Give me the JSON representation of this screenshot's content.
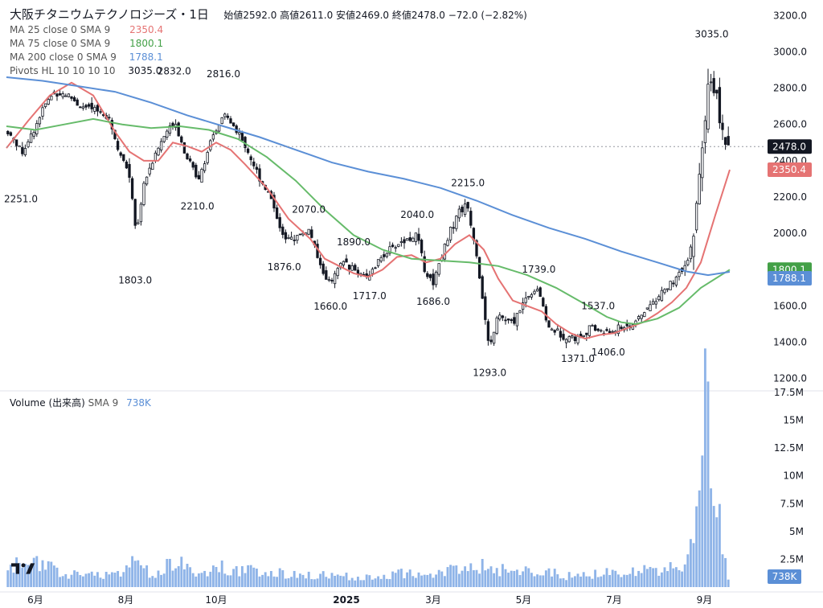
{
  "header": {
    "symbol": "大阪チタニウムテクノロジーズ・1日",
    "open_label": "始値",
    "open": "2592.0",
    "high_label": "高値",
    "high": "2611.0",
    "low_label": "安値",
    "low": "2469.0",
    "close_label": "終値",
    "close": "2478.0",
    "change": "−72.0 (−2.82%)"
  },
  "indicators": [
    {
      "label": "MA 25 close 0 SMA 9",
      "value": "2350.4",
      "color": "#e57373"
    },
    {
      "label": "MA 75 close 0 SMA 9",
      "value": "1800.1",
      "color": "#66bb6a"
    },
    {
      "label": "MA 200 close 0 SMA 9",
      "value": "1788.1",
      "color": "#5b8fd6"
    },
    {
      "label": "Pivots HL 10 10 10 10",
      "value": "3035.0",
      "color": "#131722"
    }
  ],
  "volume_legend": {
    "label": "Volume (出来高)",
    "sma": "SMA 9",
    "value": "738K",
    "color": "#5b8fd6"
  },
  "chart_data": [
    {
      "type": "candlestick",
      "title": "大阪チタニウムテクノロジーズ・1日",
      "ylim": [
        1150,
        3250
      ],
      "y_ticks": [
        "3200.0",
        "3000.0",
        "2800.0",
        "2600.0",
        "2400.0",
        "2200.0",
        "2000.0",
        "1800.0",
        "1600.0",
        "1400.0",
        "1200.0"
      ],
      "x_ticks": [
        "6月",
        "8月",
        "10月",
        "2025",
        "3月",
        "5月",
        "7月",
        "9月"
      ],
      "last_price": {
        "value": 2478.0,
        "label": "2478.0",
        "color": "#131722"
      },
      "ma_price_labels": [
        {
          "value": 2350.4,
          "label": "2350.4",
          "color": "#e57373"
        },
        {
          "value": 1800.1,
          "label": "1800.1",
          "color": "#43a047"
        },
        {
          "value": 1788.1,
          "label": "1788.1",
          "color": "#5b8fd6"
        }
      ],
      "pivots": [
        {
          "label": "2251.0",
          "value": 2251,
          "kind": "low",
          "t": 0.02
        },
        {
          "label": "2832.0",
          "value": 2832,
          "kind": "high",
          "t": 0.232
        },
        {
          "label": "1803.0",
          "value": 1803,
          "kind": "low",
          "t": 0.178
        },
        {
          "label": "2816.0",
          "value": 2816,
          "kind": "high",
          "t": 0.3
        },
        {
          "label": "2210.0",
          "value": 2210,
          "kind": "low",
          "t": 0.264
        },
        {
          "label": "2070.0",
          "value": 2070,
          "kind": "high",
          "t": 0.418
        },
        {
          "label": "1876.0",
          "value": 1876,
          "kind": "low",
          "t": 0.384
        },
        {
          "label": "1890.0",
          "value": 1890,
          "kind": "high",
          "t": 0.48
        },
        {
          "label": "1660.0",
          "value": 1660,
          "kind": "low",
          "t": 0.448
        },
        {
          "label": "1717.0",
          "value": 1717,
          "kind": "low",
          "t": 0.502
        },
        {
          "label": "2040.0",
          "value": 2040,
          "kind": "high",
          "t": 0.568
        },
        {
          "label": "2215.0",
          "value": 2215,
          "kind": "high",
          "t": 0.638
        },
        {
          "label": "1686.0",
          "value": 1686,
          "kind": "low",
          "t": 0.59
        },
        {
          "label": "1739.0",
          "value": 1739,
          "kind": "high",
          "t": 0.736
        },
        {
          "label": "1293.0",
          "value": 1293,
          "kind": "low",
          "t": 0.668
        },
        {
          "label": "1537.0",
          "value": 1537,
          "kind": "high",
          "t": 0.818
        },
        {
          "label": "1371.0",
          "value": 1371,
          "kind": "low",
          "t": 0.79
        },
        {
          "label": "1406.0",
          "value": 1406,
          "kind": "low",
          "t": 0.832
        },
        {
          "label": "3035.0",
          "value": 3035,
          "kind": "high",
          "t": 0.975
        }
      ],
      "close_path": [
        [
          0.0,
          2560
        ],
        [
          0.02,
          2450
        ],
        [
          0.035,
          2560
        ],
        [
          0.05,
          2700
        ],
        [
          0.065,
          2780
        ],
        [
          0.085,
          2760
        ],
        [
          0.1,
          2700
        ],
        [
          0.12,
          2680
        ],
        [
          0.14,
          2650
        ],
        [
          0.15,
          2500
        ],
        [
          0.17,
          2300
        ],
        [
          0.178,
          2000
        ],
        [
          0.19,
          2300
        ],
        [
          0.21,
          2480
        ],
        [
          0.22,
          2560
        ],
        [
          0.232,
          2620
        ],
        [
          0.245,
          2450
        ],
        [
          0.264,
          2300
        ],
        [
          0.28,
          2480
        ],
        [
          0.3,
          2660
        ],
        [
          0.315,
          2580
        ],
        [
          0.33,
          2480
        ],
        [
          0.35,
          2300
        ],
        [
          0.365,
          2200
        ],
        [
          0.384,
          1960
        ],
        [
          0.4,
          1980
        ],
        [
          0.418,
          2020
        ],
        [
          0.435,
          1800
        ],
        [
          0.448,
          1720
        ],
        [
          0.465,
          1850
        ],
        [
          0.48,
          1800
        ],
        [
          0.502,
          1760
        ],
        [
          0.52,
          1880
        ],
        [
          0.545,
          1950
        ],
        [
          0.568,
          1990
        ],
        [
          0.58,
          1780
        ],
        [
          0.59,
          1730
        ],
        [
          0.605,
          1920
        ],
        [
          0.625,
          2120
        ],
        [
          0.638,
          2150
        ],
        [
          0.65,
          1900
        ],
        [
          0.66,
          1600
        ],
        [
          0.668,
          1350
        ],
        [
          0.68,
          1550
        ],
        [
          0.7,
          1500
        ],
        [
          0.72,
          1650
        ],
        [
          0.736,
          1700
        ],
        [
          0.75,
          1480
        ],
        [
          0.77,
          1440
        ],
        [
          0.79,
          1420
        ],
        [
          0.81,
          1480
        ],
        [
          0.832,
          1450
        ],
        [
          0.85,
          1480
        ],
        [
          0.87,
          1500
        ],
        [
          0.89,
          1600
        ],
        [
          0.91,
          1680
        ],
        [
          0.93,
          1760
        ],
        [
          0.945,
          1850
        ],
        [
          0.955,
          2100
        ],
        [
          0.965,
          2500
        ],
        [
          0.975,
          2900
        ],
        [
          0.985,
          2700
        ],
        [
          0.995,
          2450
        ],
        [
          1.0,
          2478
        ]
      ],
      "series": [
        {
          "name": "MA 25 close 0 SMA 9",
          "color": "#e57373",
          "points": [
            [
              0.0,
              2470
            ],
            [
              0.03,
              2620
            ],
            [
              0.06,
              2760
            ],
            [
              0.09,
              2830
            ],
            [
              0.12,
              2760
            ],
            [
              0.15,
              2560
            ],
            [
              0.17,
              2450
            ],
            [
              0.19,
              2400
            ],
            [
              0.21,
              2400
            ],
            [
              0.23,
              2500
            ],
            [
              0.25,
              2480
            ],
            [
              0.27,
              2450
            ],
            [
              0.29,
              2500
            ],
            [
              0.31,
              2460
            ],
            [
              0.33,
              2380
            ],
            [
              0.36,
              2250
            ],
            [
              0.39,
              2080
            ],
            [
              0.42,
              1970
            ],
            [
              0.44,
              1860
            ],
            [
              0.46,
              1820
            ],
            [
              0.48,
              1780
            ],
            [
              0.5,
              1760
            ],
            [
              0.52,
              1800
            ],
            [
              0.54,
              1870
            ],
            [
              0.56,
              1880
            ],
            [
              0.58,
              1840
            ],
            [
              0.6,
              1860
            ],
            [
              0.62,
              1940
            ],
            [
              0.64,
              1990
            ],
            [
              0.66,
              1910
            ],
            [
              0.68,
              1750
            ],
            [
              0.7,
              1630
            ],
            [
              0.72,
              1600
            ],
            [
              0.74,
              1570
            ],
            [
              0.76,
              1500
            ],
            [
              0.78,
              1450
            ],
            [
              0.8,
              1420
            ],
            [
              0.82,
              1440
            ],
            [
              0.84,
              1450
            ],
            [
              0.86,
              1480
            ],
            [
              0.88,
              1510
            ],
            [
              0.9,
              1560
            ],
            [
              0.92,
              1620
            ],
            [
              0.94,
              1700
            ],
            [
              0.96,
              1840
            ],
            [
              0.98,
              2100
            ],
            [
              1.0,
              2350.4
            ]
          ]
        },
        {
          "name": "MA 75 close 0 SMA 9",
          "color": "#66bb6a",
          "points": [
            [
              0.0,
              2590
            ],
            [
              0.04,
              2570
            ],
            [
              0.08,
              2600
            ],
            [
              0.12,
              2630
            ],
            [
              0.16,
              2600
            ],
            [
              0.2,
              2580
            ],
            [
              0.24,
              2590
            ],
            [
              0.28,
              2570
            ],
            [
              0.32,
              2520
            ],
            [
              0.36,
              2420
            ],
            [
              0.4,
              2290
            ],
            [
              0.44,
              2130
            ],
            [
              0.48,
              1990
            ],
            [
              0.52,
              1910
            ],
            [
              0.56,
              1860
            ],
            [
              0.6,
              1850
            ],
            [
              0.64,
              1840
            ],
            [
              0.68,
              1820
            ],
            [
              0.72,
              1770
            ],
            [
              0.76,
              1700
            ],
            [
              0.8,
              1610
            ],
            [
              0.83,
              1540
            ],
            [
              0.85,
              1510
            ],
            [
              0.87,
              1500
            ],
            [
              0.9,
              1530
            ],
            [
              0.93,
              1590
            ],
            [
              0.96,
              1700
            ],
            [
              1.0,
              1800.1
            ]
          ]
        },
        {
          "name": "MA 200 close 0 SMA 9",
          "color": "#5b8fd6",
          "points": [
            [
              0.0,
              2860
            ],
            [
              0.05,
              2840
            ],
            [
              0.1,
              2810
            ],
            [
              0.15,
              2780
            ],
            [
              0.2,
              2720
            ],
            [
              0.25,
              2650
            ],
            [
              0.3,
              2590
            ],
            [
              0.35,
              2530
            ],
            [
              0.4,
              2460
            ],
            [
              0.45,
              2390
            ],
            [
              0.5,
              2340
            ],
            [
              0.55,
              2300
            ],
            [
              0.6,
              2250
            ],
            [
              0.65,
              2180
            ],
            [
              0.7,
              2100
            ],
            [
              0.75,
              2030
            ],
            [
              0.8,
              1970
            ],
            [
              0.85,
              1900
            ],
            [
              0.9,
              1840
            ],
            [
              0.94,
              1790
            ],
            [
              0.97,
              1770
            ],
            [
              1.0,
              1788.1
            ]
          ]
        }
      ]
    },
    {
      "type": "bar",
      "title": "Volume (出来高)",
      "ylim": [
        0,
        17500000
      ],
      "y_ticks": [
        "17.5M",
        "15M",
        "12.5M",
        "10M",
        "7.5M",
        "5M",
        "2.5M"
      ],
      "last_volume": {
        "value": 738000,
        "label": "738K"
      },
      "volume_path": [
        [
          0.0,
          1500000
        ],
        [
          0.03,
          2600000
        ],
        [
          0.05,
          1800000
        ],
        [
          0.1,
          1000000
        ],
        [
          0.15,
          1300000
        ],
        [
          0.178,
          2200000
        ],
        [
          0.2,
          1100000
        ],
        [
          0.232,
          2400000
        ],
        [
          0.26,
          1200000
        ],
        [
          0.3,
          1800000
        ],
        [
          0.34,
          1400000
        ],
        [
          0.38,
          1300000
        ],
        [
          0.42,
          1000000
        ],
        [
          0.46,
          1100000
        ],
        [
          0.5,
          800000
        ],
        [
          0.55,
          1300000
        ],
        [
          0.58,
          900000
        ],
        [
          0.63,
          1800000
        ],
        [
          0.668,
          1900000
        ],
        [
          0.7,
          1300000
        ],
        [
          0.74,
          1400000
        ],
        [
          0.78,
          1000000
        ],
        [
          0.82,
          1200000
        ],
        [
          0.86,
          1300000
        ],
        [
          0.9,
          1600000
        ],
        [
          0.94,
          2200000
        ],
        [
          0.955,
          5000000
        ],
        [
          0.965,
          16000000
        ],
        [
          0.975,
          14500000
        ],
        [
          0.985,
          7500000
        ],
        [
          0.995,
          3000000
        ],
        [
          1.0,
          738000
        ]
      ]
    }
  ]
}
